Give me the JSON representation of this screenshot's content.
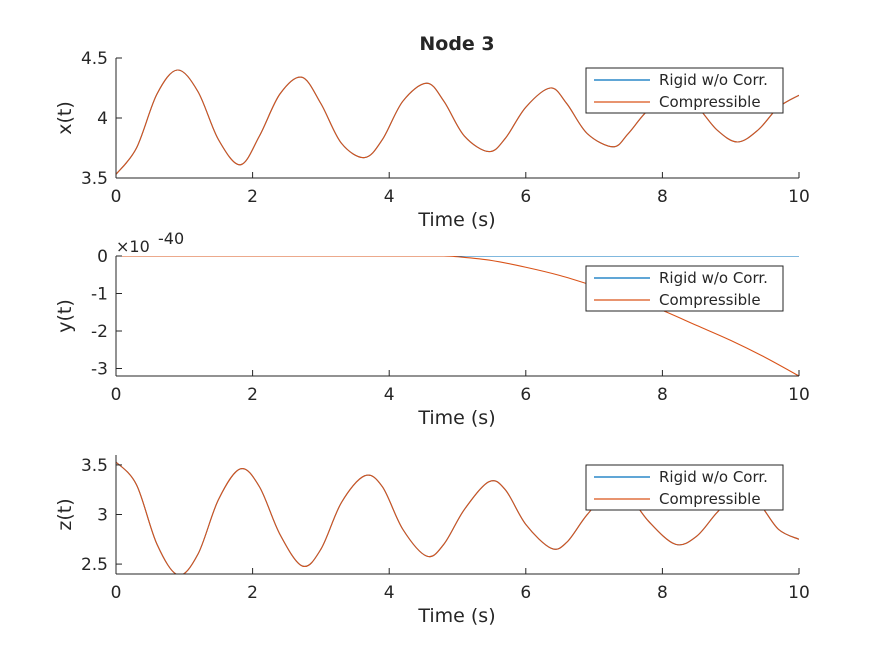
{
  "figure_title": "Node 3",
  "colors": {
    "rigid": "#0072BD",
    "compressible": "#D95319",
    "axis": "#262626",
    "background": "#ffffff"
  },
  "chart_data": [
    {
      "type": "line",
      "title": "Node 3",
      "xlabel": "Time (s)",
      "ylabel": "x(t)",
      "xlim": [
        0,
        10
      ],
      "ylim": [
        3.5,
        4.5
      ],
      "xticks": [
        "0",
        "2",
        "4",
        "6",
        "8",
        "10"
      ],
      "yticks": [
        "3.5",
        "4",
        "4.5"
      ],
      "legend": [
        "Rigid w/o Corr.",
        "Compressible"
      ],
      "legend_position": "top-right",
      "grid": false,
      "series": [
        {
          "name": "Rigid w/o Corr.",
          "color": "#0072BD",
          "x": [
            0,
            0.3,
            0.6,
            0.9,
            1.2,
            1.5,
            1.82,
            2.1,
            2.4,
            2.72,
            3.0,
            3.3,
            3.64,
            3.9,
            4.2,
            4.55,
            4.8,
            5.1,
            5.46,
            5.7,
            6.0,
            6.36,
            6.6,
            6.9,
            7.28,
            7.5,
            7.8,
            8.2,
            8.5,
            8.8,
            9.1,
            9.4,
            9.7,
            10.0
          ],
          "y": [
            3.53,
            3.75,
            4.2,
            4.4,
            4.22,
            3.82,
            3.61,
            3.85,
            4.2,
            4.34,
            4.12,
            3.79,
            3.67,
            3.82,
            4.14,
            4.29,
            4.14,
            3.85,
            3.72,
            3.83,
            4.09,
            4.25,
            4.12,
            3.87,
            3.76,
            3.87,
            4.07,
            4.21,
            4.1,
            3.9,
            3.8,
            3.9,
            4.09,
            4.19
          ]
        },
        {
          "name": "Compressible",
          "color": "#D95319",
          "x": [
            0,
            0.3,
            0.6,
            0.9,
            1.2,
            1.5,
            1.82,
            2.1,
            2.4,
            2.72,
            3.0,
            3.3,
            3.64,
            3.9,
            4.2,
            4.55,
            4.8,
            5.1,
            5.46,
            5.7,
            6.0,
            6.36,
            6.6,
            6.9,
            7.28,
            7.5,
            7.8,
            8.2,
            8.5,
            8.8,
            9.1,
            9.4,
            9.7,
            10.0
          ],
          "y": [
            3.53,
            3.75,
            4.2,
            4.4,
            4.22,
            3.82,
            3.61,
            3.85,
            4.2,
            4.34,
            4.12,
            3.79,
            3.67,
            3.82,
            4.14,
            4.29,
            4.14,
            3.85,
            3.72,
            3.83,
            4.09,
            4.25,
            4.12,
            3.87,
            3.76,
            3.87,
            4.07,
            4.21,
            4.1,
            3.9,
            3.8,
            3.9,
            4.09,
            4.19
          ]
        }
      ]
    },
    {
      "type": "line",
      "xlabel": "Time (s)",
      "ylabel": "y(t)",
      "exponent_label": "×10",
      "exponent_power": "-40",
      "xlim": [
        0,
        10
      ],
      "ylim": [
        -3.2,
        0
      ],
      "xticks": [
        "0",
        "2",
        "4",
        "6",
        "8",
        "10"
      ],
      "yticks": [
        "0",
        "-1",
        "-2",
        "-3"
      ],
      "legend": [
        "Rigid w/o Corr.",
        "Compressible"
      ],
      "legend_position": "top-right",
      "grid": false,
      "series": [
        {
          "name": "Rigid w/o Corr.",
          "color": "#0072BD",
          "x": [
            0,
            2,
            4,
            4.8,
            6,
            8,
            10
          ],
          "y": [
            0,
            0,
            0,
            0,
            0,
            0,
            0
          ]
        },
        {
          "name": "Compressible",
          "color": "#D95319",
          "x": [
            0,
            2,
            4,
            4.8,
            5.0,
            5.5,
            6.0,
            6.5,
            7.0,
            7.5,
            8.0,
            8.5,
            9.0,
            9.5,
            10.0
          ],
          "y": [
            0,
            0,
            0,
            0,
            -0.02,
            -0.12,
            -0.3,
            -0.52,
            -0.8,
            -1.1,
            -1.45,
            -1.85,
            -2.25,
            -2.7,
            -3.2
          ]
        }
      ]
    },
    {
      "type": "line",
      "xlabel": "Time (s)",
      "ylabel": "z(t)",
      "xlim": [
        0,
        10
      ],
      "ylim": [
        2.4,
        3.6
      ],
      "xticks": [
        "0",
        "2",
        "4",
        "6",
        "8",
        "10"
      ],
      "yticks": [
        "2.5",
        "3",
        "3.5"
      ],
      "legend": [
        "Rigid w/o Corr.",
        "Compressible"
      ],
      "legend_position": "top-right",
      "grid": false,
      "series": [
        {
          "name": "Rigid w/o Corr.",
          "color": "#0072BD",
          "x": [
            0,
            0.3,
            0.6,
            0.91,
            1.2,
            1.5,
            1.82,
            2.1,
            2.4,
            2.73,
            3.0,
            3.3,
            3.64,
            3.9,
            4.2,
            4.55,
            4.8,
            5.1,
            5.46,
            5.7,
            6.0,
            6.37,
            6.6,
            6.9,
            7.28,
            7.5,
            7.8,
            8.19,
            8.5,
            8.8,
            9.1,
            9.4,
            9.7,
            10.0
          ],
          "y": [
            3.53,
            3.3,
            2.7,
            2.39,
            2.6,
            3.15,
            3.46,
            3.28,
            2.8,
            2.48,
            2.65,
            3.12,
            3.39,
            3.28,
            2.85,
            2.58,
            2.7,
            3.05,
            3.33,
            3.25,
            2.9,
            2.66,
            2.72,
            3.0,
            3.27,
            3.2,
            2.93,
            2.7,
            2.78,
            3.02,
            3.21,
            3.12,
            2.85,
            2.75
          ]
        },
        {
          "name": "Compressible",
          "color": "#D95319",
          "x": [
            0,
            0.3,
            0.6,
            0.91,
            1.2,
            1.5,
            1.82,
            2.1,
            2.4,
            2.73,
            3.0,
            3.3,
            3.64,
            3.9,
            4.2,
            4.55,
            4.8,
            5.1,
            5.46,
            5.7,
            6.0,
            6.37,
            6.6,
            6.9,
            7.28,
            7.5,
            7.8,
            8.19,
            8.5,
            8.8,
            9.1,
            9.4,
            9.7,
            10.0
          ],
          "y": [
            3.53,
            3.3,
            2.7,
            2.39,
            2.6,
            3.15,
            3.46,
            3.28,
            2.8,
            2.48,
            2.65,
            3.12,
            3.39,
            3.28,
            2.85,
            2.58,
            2.7,
            3.05,
            3.33,
            3.25,
            2.9,
            2.66,
            2.72,
            3.0,
            3.27,
            3.2,
            2.93,
            2.7,
            2.78,
            3.02,
            3.21,
            3.12,
            2.85,
            2.75
          ]
        }
      ]
    }
  ]
}
